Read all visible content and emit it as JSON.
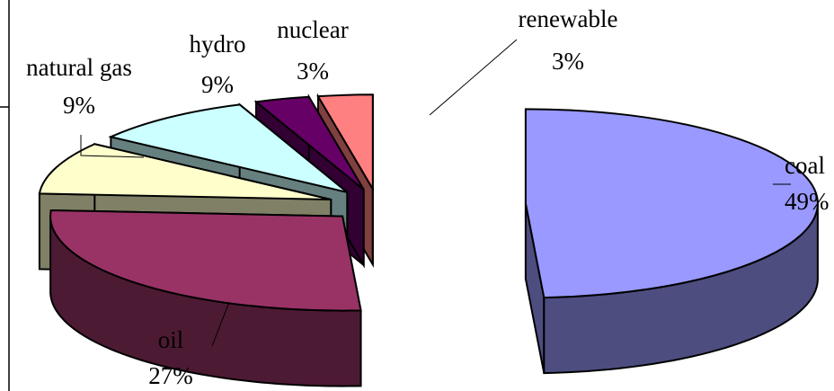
{
  "chart_data": {
    "type": "pie",
    "style": "3d-exploded",
    "categories": [
      "coal",
      "oil",
      "natural gas",
      "hydro",
      "nuclear",
      "renewable"
    ],
    "values": [
      49,
      27,
      9,
      9,
      3,
      3
    ],
    "data_labels": [
      "49%",
      "27%",
      "9%",
      "9%",
      "3%",
      "3%"
    ],
    "colors": {
      "coal": "#9999ff",
      "oil": "#993366",
      "natural gas": "#ffffcc",
      "hydro": "#ccffff",
      "nuclear": "#660066",
      "renewable": "#ff8080"
    },
    "title": "",
    "legend": "none"
  }
}
